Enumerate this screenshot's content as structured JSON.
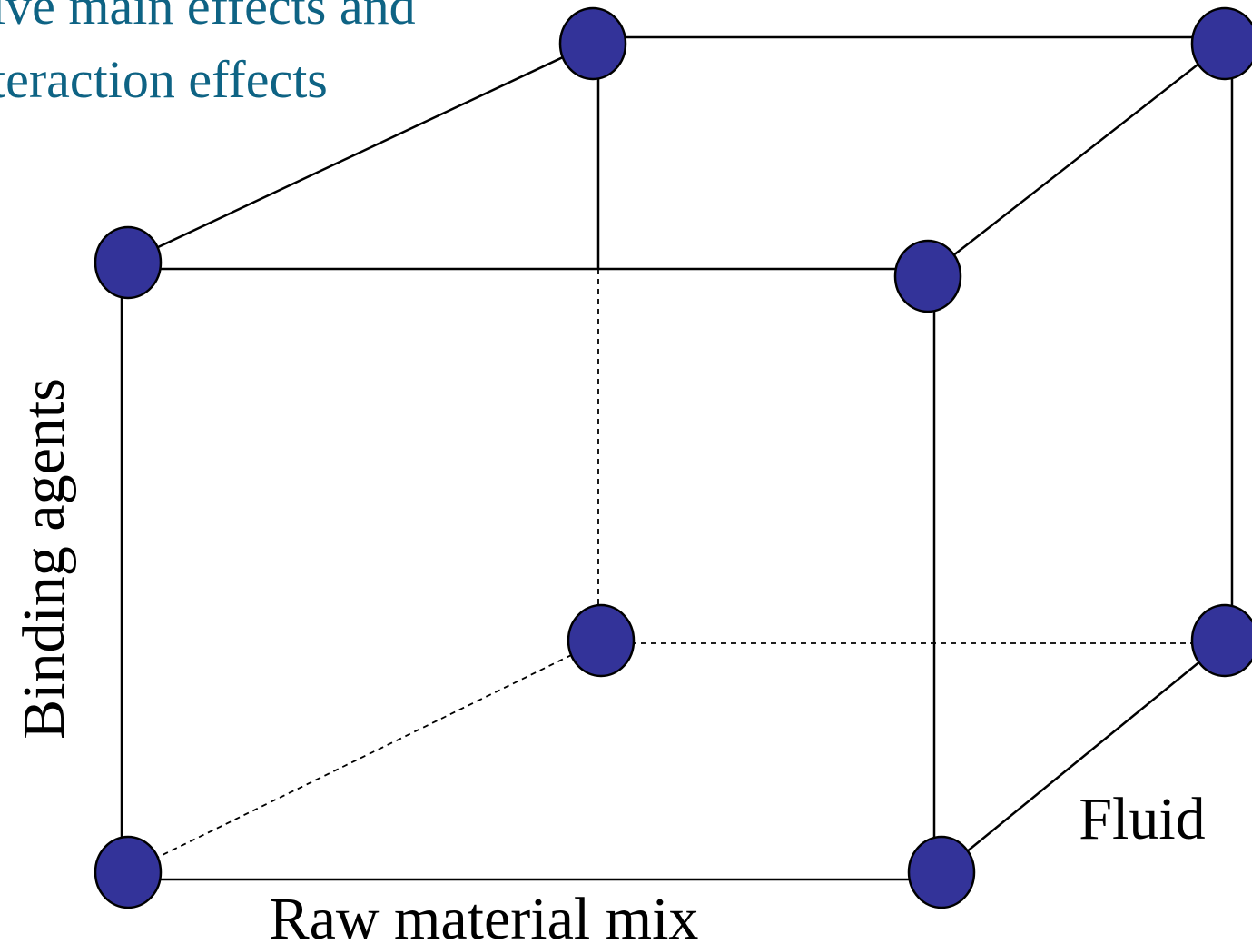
{
  "header": {
    "line1": "ive main effects and",
    "line2": "teraction effects"
  },
  "axes": {
    "vertical_label": "Binding agents",
    "horizontal_label": "Raw material mix",
    "depth_label": "Fluid"
  },
  "colors": {
    "node_fill": "#333399",
    "header_text": "#0e6384",
    "label_text": "#000000"
  }
}
